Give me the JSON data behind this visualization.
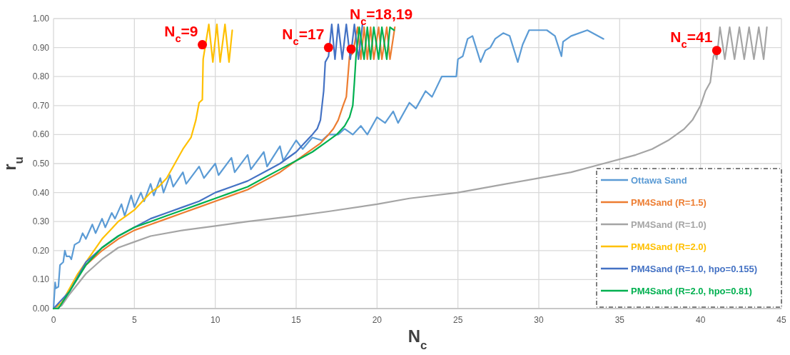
{
  "chart_data": {
    "type": "line",
    "xlabel": "N$_{c}$",
    "ylabel": "r$_{u}$",
    "xlim": [
      0,
      45
    ],
    "xticks": [
      0,
      5,
      10,
      15,
      20,
      25,
      30,
      35,
      40,
      45
    ],
    "ylim": [
      0,
      1
    ],
    "yticks": [
      {
        "value": 0,
        "label": "0.00"
      },
      {
        "value": 0.1,
        "label": "0.10"
      },
      {
        "value": 0.2,
        "label": "0.20"
      },
      {
        "value": 0.3,
        "label": "0.30"
      },
      {
        "value": 0.4,
        "label": "0.40"
      },
      {
        "value": 0.5,
        "label": "0.50"
      },
      {
        "value": 0.6,
        "label": "0.60"
      },
      {
        "value": 0.7,
        "label": "0.70"
      },
      {
        "value": 0.8,
        "label": "0.80"
      },
      {
        "value": 0.9,
        "label": "0.90"
      },
      {
        "value": 1,
        "label": "1.00"
      }
    ],
    "grid": true,
    "legend": "bottom right",
    "line_style": "solid",
    "series": [
      {
        "name": "Ottawa Sand",
        "color": "#5b9bd5",
        "x": [
          0,
          0.1,
          0.15,
          0.3,
          0.4,
          0.6,
          0.7,
          0.8,
          1,
          1.1,
          1.3,
          1.6,
          1.8,
          2,
          2.4,
          2.6,
          3,
          3.2,
          3.6,
          3.8,
          4.2,
          4.4,
          4.8,
          5,
          5.4,
          5.6,
          6,
          6.2,
          6.6,
          6.8,
          7.2,
          7.4,
          8,
          8.2,
          9,
          9.3,
          10,
          10.2,
          11,
          11.2,
          12,
          12.2,
          13,
          13.2,
          14,
          14.2,
          15,
          15.4,
          16,
          16.6,
          17,
          17.6,
          18,
          18.5,
          19,
          19.4,
          20,
          20.5,
          21,
          21.3,
          22,
          22.4,
          23,
          23.4,
          24,
          24.5,
          24.9,
          25,
          25.3,
          25.6,
          25.9,
          26.4,
          26.7,
          27,
          27.3,
          27.8,
          28.2,
          28.7,
          29,
          29.4,
          30,
          30.5,
          31,
          31.4,
          31.5,
          32,
          33,
          34
        ],
        "values": [
          0,
          0.09,
          0.07,
          0.075,
          0.15,
          0.16,
          0.2,
          0.18,
          0.18,
          0.17,
          0.22,
          0.23,
          0.26,
          0.24,
          0.29,
          0.26,
          0.31,
          0.28,
          0.33,
          0.31,
          0.36,
          0.32,
          0.39,
          0.35,
          0.4,
          0.37,
          0.43,
          0.39,
          0.45,
          0.4,
          0.46,
          0.42,
          0.47,
          0.43,
          0.49,
          0.45,
          0.5,
          0.46,
          0.52,
          0.47,
          0.53,
          0.48,
          0.54,
          0.49,
          0.56,
          0.51,
          0.58,
          0.55,
          0.59,
          0.58,
          0.6,
          0.6,
          0.62,
          0.6,
          0.63,
          0.6,
          0.66,
          0.64,
          0.68,
          0.64,
          0.71,
          0.69,
          0.75,
          0.73,
          0.8,
          0.8,
          0.8,
          0.86,
          0.87,
          0.93,
          0.94,
          0.85,
          0.89,
          0.9,
          0.93,
          0.95,
          0.94,
          0.85,
          0.91,
          0.96,
          0.96,
          0.96,
          0.94,
          0.87,
          0.92,
          0.94,
          0.96,
          0.93
        ]
      },
      {
        "name": "PM4Sand (R=1.5)",
        "color": "#ed7d31",
        "x": [
          1.5,
          2,
          3,
          4,
          5,
          6,
          7,
          8,
          9,
          10,
          11,
          12,
          13,
          14,
          15,
          16,
          16.5,
          17,
          17.3,
          17.6,
          17.9,
          18.1,
          18.2,
          18.3,
          18.5,
          18.8,
          19,
          19.2,
          19.4,
          19.6,
          19.8,
          20.1,
          20.3,
          20.6,
          20.8,
          21.1
        ],
        "values": [
          0.11,
          0.15,
          0.2,
          0.24,
          0.27,
          0.29,
          0.31,
          0.33,
          0.35,
          0.37,
          0.39,
          0.41,
          0.44,
          0.47,
          0.51,
          0.55,
          0.57,
          0.6,
          0.62,
          0.65,
          0.7,
          0.73,
          0.8,
          0.87,
          0.88,
          0.97,
          0.86,
          0.97,
          0.86,
          0.97,
          0.86,
          0.97,
          0.86,
          0.97,
          0.86,
          0.97
        ]
      },
      {
        "name": "PM4Sand (R=1.0)",
        "color": "#a5a5a5",
        "x": [
          0,
          0.5,
          1,
          2,
          3,
          4,
          5,
          6,
          8,
          10,
          12,
          15,
          17,
          20,
          22,
          25,
          28,
          30,
          32,
          34,
          36,
          37,
          38,
          39,
          39.5,
          40,
          40.3,
          40.6,
          40.8,
          40.9,
          41,
          41.2,
          41.5,
          41.8,
          42.1,
          42.4,
          42.7,
          43,
          43.3,
          43.6,
          43.9,
          44.1
        ],
        "values": [
          0,
          0.01,
          0.05,
          0.12,
          0.17,
          0.21,
          0.23,
          0.25,
          0.27,
          0.285,
          0.3,
          0.32,
          0.335,
          0.36,
          0.38,
          0.4,
          0.43,
          0.45,
          0.47,
          0.5,
          0.53,
          0.55,
          0.58,
          0.62,
          0.65,
          0.7,
          0.75,
          0.78,
          0.87,
          0.88,
          0.86,
          0.97,
          0.86,
          0.97,
          0.86,
          0.97,
          0.86,
          0.97,
          0.86,
          0.97,
          0.86,
          0.97
        ]
      },
      {
        "name": "PM4Sand (R=2.0)",
        "color": "#ffc000",
        "x": [
          0,
          0.5,
          1,
          1.5,
          2,
          2.5,
          3,
          3.5,
          4,
          4.5,
          5,
          5.5,
          6,
          6.5,
          7,
          7.5,
          8,
          8.5,
          8.8,
          9,
          9.2,
          9.25,
          9.6,
          9.85,
          10.1,
          10.3,
          10.6,
          10.85,
          11.05
        ],
        "values": [
          0,
          0.02,
          0.07,
          0.12,
          0.16,
          0.2,
          0.24,
          0.27,
          0.3,
          0.32,
          0.34,
          0.37,
          0.4,
          0.42,
          0.45,
          0.5,
          0.55,
          0.59,
          0.65,
          0.71,
          0.72,
          0.86,
          0.98,
          0.85,
          0.98,
          0.85,
          0.98,
          0.85,
          0.96
        ]
      },
      {
        "name": "PM4Sand (R=1.0, hpo=0.155)",
        "color": "#4472c4",
        "x": [
          0,
          1,
          2,
          3,
          4,
          5,
          6,
          7,
          8,
          9,
          10,
          11,
          12,
          13,
          14,
          15,
          15.5,
          16,
          16.3,
          16.5,
          16.7,
          16.8,
          17,
          17.2,
          17.4,
          17.6,
          17.85,
          18.1,
          18.35,
          18.6,
          18.85,
          19.1
        ],
        "values": [
          0,
          0.06,
          0.16,
          0.21,
          0.25,
          0.28,
          0.31,
          0.33,
          0.35,
          0.37,
          0.4,
          0.42,
          0.44,
          0.47,
          0.5,
          0.54,
          0.57,
          0.6,
          0.62,
          0.65,
          0.75,
          0.85,
          0.87,
          0.98,
          0.86,
          0.98,
          0.86,
          0.98,
          0.86,
          0.98,
          0.86,
          0.98
        ]
      },
      {
        "name": "PM4Sand (R=2.0, hpo=0.81)",
        "color": "#00b050",
        "x": [
          0,
          0.3,
          1,
          2,
          3,
          4,
          5,
          6,
          7,
          8,
          9,
          10,
          11,
          12,
          13,
          14,
          15,
          16,
          17,
          17.5,
          18,
          18.3,
          18.5,
          18.6,
          18.7,
          18.9,
          19.2,
          19.4,
          19.6,
          19.8,
          20.1,
          20.3,
          20.6,
          20.8,
          21.05
        ],
        "values": [
          0,
          0,
          0.06,
          0.15,
          0.21,
          0.25,
          0.28,
          0.3,
          0.32,
          0.34,
          0.36,
          0.38,
          0.4,
          0.42,
          0.45,
          0.48,
          0.51,
          0.54,
          0.58,
          0.6,
          0.63,
          0.66,
          0.7,
          0.78,
          0.87,
          0.97,
          0.86,
          0.97,
          0.86,
          0.97,
          0.86,
          0.97,
          0.86,
          0.97,
          0.96
        ]
      },
      {
        "type": "scatter",
        "marker": "circle",
        "color": "#ff0000",
        "x": [
          9.2,
          17,
          18.4,
          41
        ],
        "values": [
          0.91,
          0.9,
          0.895,
          0.89
        ]
      }
    ],
    "annotations": [
      {
        "text": "N$_{c}$=9",
        "x": 9.2,
        "y": 0.91
      },
      {
        "text": "N$_{c}$=17",
        "x": 17,
        "y": 0.9
      },
      {
        "text": "N$_{c}$=18,19",
        "x": 18.4,
        "y": 0.895
      },
      {
        "text": "N$_{c}$=41",
        "x": 41,
        "y": 0.89
      }
    ]
  }
}
